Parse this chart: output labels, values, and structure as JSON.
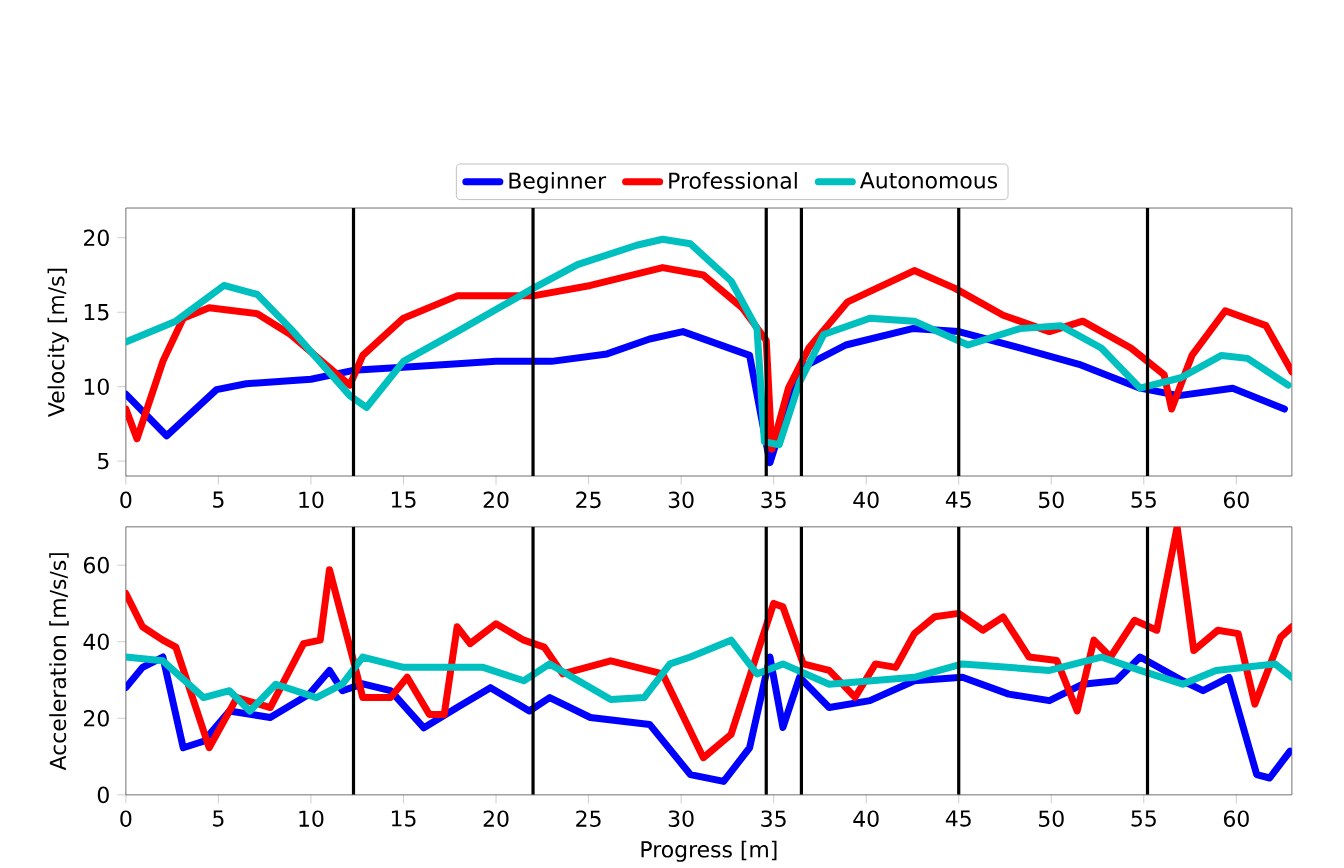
{
  "chart_data": [
    {
      "type": "line",
      "ylabel": "Velocity [m/s]",
      "xlim": [
        0,
        63
      ],
      "ylim": [
        4,
        22
      ],
      "xticks": [
        0,
        5,
        10,
        15,
        20,
        25,
        30,
        35,
        40,
        45,
        50,
        55,
        60
      ],
      "yticks": [
        5,
        10,
        15,
        20
      ],
      "legend": "top",
      "line_style": "solid",
      "ref_lines": [
        {
          "axis": "x",
          "value": 12.3,
          "color": "#000000"
        },
        {
          "axis": "x",
          "value": 22,
          "color": "#000000"
        },
        {
          "axis": "x",
          "value": 34.6,
          "color": "#000000"
        },
        {
          "axis": "x",
          "value": 36.5,
          "color": "#000000"
        },
        {
          "axis": "x",
          "value": 45,
          "color": "#000000"
        },
        {
          "axis": "x",
          "value": 55.2,
          "color": "#000000"
        }
      ],
      "series": [
        {
          "name": "Beginner",
          "color": "#0000ff",
          "x": [
            0,
            2.2,
            4.9,
            6.5,
            10,
            12.3,
            15,
            20,
            23,
            26,
            28.3,
            30.1,
            33.7,
            34.8,
            36.4,
            38.9,
            42.5,
            45,
            48.3,
            51.5,
            54.8,
            56.9,
            59.8,
            62.6
          ],
          "values": [
            9.5,
            6.7,
            9.8,
            10.2,
            10.5,
            11.1,
            11.3,
            11.7,
            11.7,
            12.2,
            13.2,
            13.7,
            12.1,
            4.9,
            11.2,
            12.8,
            13.9,
            13.7,
            12.6,
            11.5,
            9.9,
            9.4,
            9.9,
            8.5
          ]
        },
        {
          "name": "Professional",
          "color": "#ff0000",
          "x": [
            0,
            0.6,
            2,
            3.1,
            4.5,
            7.1,
            8.9,
            12.1,
            12.8,
            15,
            17.9,
            22,
            25.1,
            29,
            31.2,
            33.3,
            34.6,
            34.9,
            35.8,
            36.9,
            39,
            42.6,
            44.8,
            47.4,
            49.9,
            51.7,
            54.3,
            56.1,
            56.5,
            57.6,
            59.4,
            61.6,
            63
          ],
          "values": [
            8.5,
            6.5,
            11.7,
            14.6,
            15.3,
            14.9,
            13.5,
            10.1,
            12.1,
            14.6,
            16.1,
            16.1,
            16.8,
            18.0,
            17.5,
            15.3,
            13.1,
            5.8,
            9.9,
            12.6,
            15.7,
            17.8,
            16.6,
            14.8,
            13.7,
            14.4,
            12.6,
            10.8,
            8.5,
            12.1,
            15.1,
            14.1,
            11.0
          ]
        },
        {
          "name": "Autonomous",
          "color": "#00bfbf",
          "x": [
            0,
            2.7,
            5.3,
            7.1,
            8.9,
            12.1,
            13,
            15,
            17.9,
            22,
            24.4,
            27.6,
            29,
            30.5,
            32.7,
            34.1,
            34.5,
            35.3,
            36.4,
            37.7,
            40.2,
            42.6,
            45.5,
            48.3,
            50.5,
            52.7,
            54.8,
            57,
            59.2,
            60.6,
            62.8
          ],
          "values": [
            13.0,
            14.4,
            16.8,
            16.2,
            13.9,
            9.4,
            8.6,
            11.7,
            13.7,
            16.6,
            18.2,
            19.5,
            19.9,
            19.6,
            17.1,
            13.9,
            6.3,
            6.1,
            10.3,
            13.5,
            14.6,
            14.4,
            12.8,
            13.9,
            14.1,
            12.6,
            9.9,
            10.6,
            12.1,
            11.9,
            10.1
          ]
        }
      ]
    },
    {
      "type": "line",
      "xlabel": "Progress [m]",
      "ylabel": "Acceleration [m/s/s]",
      "xlim": [
        0,
        63
      ],
      "ylim": [
        0,
        70
      ],
      "xticks": [
        0,
        5,
        10,
        15,
        20,
        25,
        30,
        35,
        40,
        45,
        50,
        55,
        60
      ],
      "yticks": [
        0,
        20,
        40,
        60
      ],
      "line_style": "solid",
      "ref_lines": [
        {
          "axis": "x",
          "value": 12.3,
          "color": "#000000"
        },
        {
          "axis": "x",
          "value": 22,
          "color": "#000000"
        },
        {
          "axis": "x",
          "value": 34.6,
          "color": "#000000"
        },
        {
          "axis": "x",
          "value": 36.5,
          "color": "#000000"
        },
        {
          "axis": "x",
          "value": 45,
          "color": "#000000"
        },
        {
          "axis": "x",
          "value": 55.2,
          "color": "#000000"
        }
      ],
      "series": [
        {
          "color": "#0000ff",
          "x": [
            0,
            0.9,
            2,
            3.1,
            4.2,
            5.6,
            7.8,
            9.9,
            11,
            11.7,
            12.8,
            14.3,
            16.1,
            17.9,
            19.7,
            21.8,
            22.9,
            25.1,
            28.3,
            30.5,
            32.3,
            33.7,
            34.8,
            35.5,
            36.4,
            38,
            40.2,
            42.6,
            45.2,
            47.7,
            49.9,
            51.7,
            53.5,
            54.8,
            57.1,
            58.2,
            59.6,
            61.1,
            61.8,
            62.9
          ],
          "values": [
            28,
            33.3,
            36,
            12.3,
            14,
            21.9,
            20.2,
            26.3,
            32.5,
            27.2,
            29,
            27.2,
            17.5,
            22.8,
            28,
            21.9,
            25.4,
            20.2,
            18.4,
            5.3,
            3.5,
            12.3,
            36,
            17.6,
            30.7,
            22.8,
            24.6,
            29.8,
            30.7,
            26.3,
            24.6,
            28.9,
            29.8,
            36,
            29.8,
            27.2,
            30.7,
            5.3,
            4.4,
            11.4
          ]
        },
        {
          "color": "#ff0000",
          "x": [
            0,
            0.9,
            2,
            2.7,
            4.5,
            6,
            7.8,
            9.6,
            10.5,
            11,
            12.3,
            12.8,
            14.3,
            15.2,
            16.4,
            17.2,
            17.9,
            18.6,
            20,
            21.5,
            22.6,
            23.6,
            26.2,
            29,
            31.2,
            32.7,
            34.1,
            35,
            35.5,
            36.6,
            38,
            39.4,
            40.5,
            41.6,
            42.6,
            43.7,
            45,
            46.3,
            47.4,
            48.8,
            50.3,
            51.4,
            52.3,
            53.2,
            54.5,
            55.7,
            56.8,
            57.7,
            59,
            60.1,
            61,
            62.4,
            63
          ],
          "values": [
            52.6,
            43.9,
            40.4,
            38.6,
            12.3,
            25.4,
            22.8,
            39.5,
            40.4,
            58.8,
            35,
            25.4,
            25.4,
            30.7,
            21,
            21,
            43.9,
            39.5,
            44.7,
            40.4,
            38.6,
            31.6,
            35,
            31.6,
            9.7,
            15.8,
            36.8,
            50,
            49.1,
            34.2,
            32.5,
            25.5,
            34.2,
            33.3,
            42.1,
            46.5,
            47.4,
            43,
            46.5,
            36,
            35.1,
            21.9,
            40.4,
            36,
            45.6,
            43,
            70,
            37.7,
            43,
            42.1,
            23.7,
            41.2,
            43.9
          ]
        },
        {
          "color": "#00bfbf",
          "x": [
            0,
            2,
            4.2,
            5.6,
            6.7,
            8.1,
            10.3,
            11.7,
            12.8,
            15,
            17.2,
            19.3,
            21.5,
            22.9,
            26.2,
            28,
            29.4,
            30.5,
            32.7,
            34.1,
            35.5,
            38,
            42.6,
            45.2,
            49.9,
            52.7,
            54.8,
            57.1,
            58.9,
            62.1,
            63
          ],
          "values": [
            36,
            35,
            25.4,
            27.2,
            21.9,
            28.9,
            25.4,
            28.9,
            36,
            33.3,
            33.3,
            33.3,
            29.8,
            34.2,
            24.9,
            25.4,
            34.2,
            36,
            40.4,
            31.6,
            34.2,
            28.9,
            30.7,
            34.2,
            32.5,
            36,
            32.5,
            28.9,
            32.5,
            34.2,
            30.7
          ]
        }
      ]
    }
  ]
}
